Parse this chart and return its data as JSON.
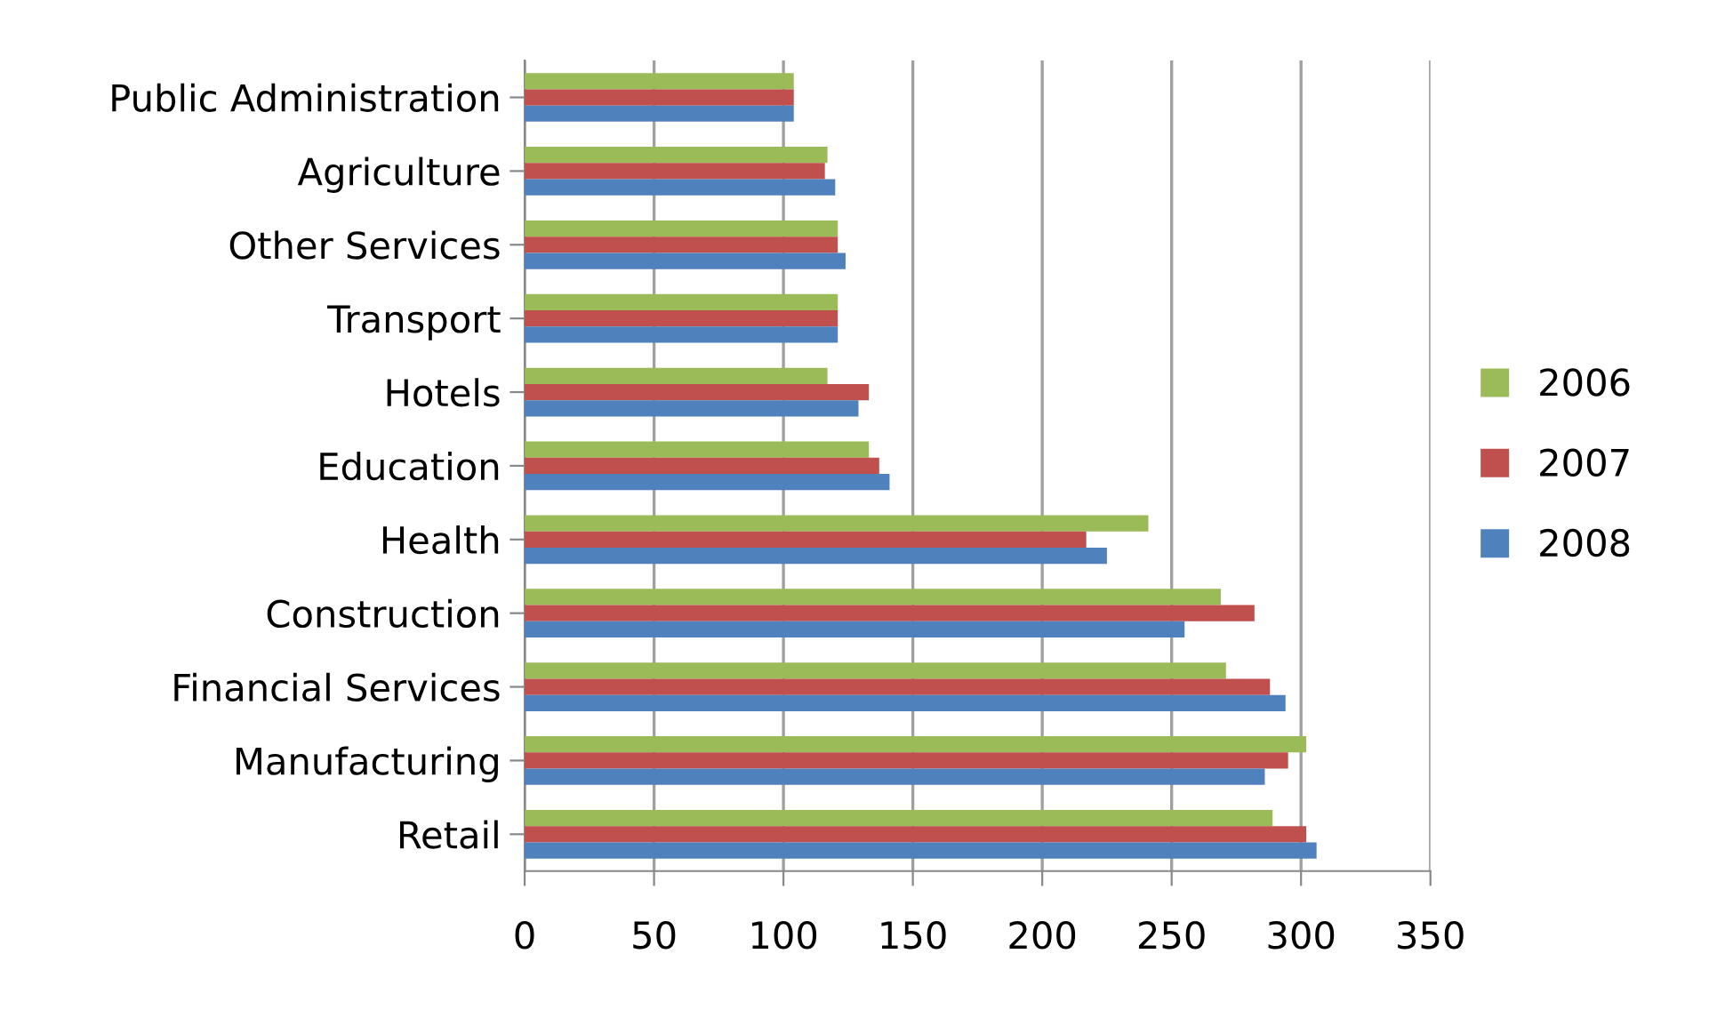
{
  "chart_data": {
    "type": "bar",
    "orientation": "horizontal",
    "categories": [
      "Public Administration",
      "Agriculture",
      "Other Services",
      "Transport",
      "Hotels",
      "Education",
      "Health",
      "Construction",
      "Financial Services",
      "Manufacturing",
      "Retail"
    ],
    "series": [
      {
        "name": "2006",
        "color": "#9bbb59",
        "values": [
          104,
          117,
          121,
          121,
          117,
          133,
          241,
          269,
          271,
          302,
          289
        ]
      },
      {
        "name": "2007",
        "color": "#c0504d",
        "values": [
          104,
          116,
          121,
          121,
          133,
          137,
          217,
          282,
          288,
          295,
          302
        ]
      },
      {
        "name": "2008",
        "color": "#4f81bd",
        "values": [
          104,
          120,
          124,
          121,
          129,
          141,
          225,
          255,
          294,
          286,
          306
        ]
      }
    ],
    "xlim": [
      0,
      350
    ],
    "xticks": [
      0,
      50,
      100,
      150,
      200,
      250,
      300,
      350
    ],
    "grid": "x",
    "legend": "right"
  }
}
